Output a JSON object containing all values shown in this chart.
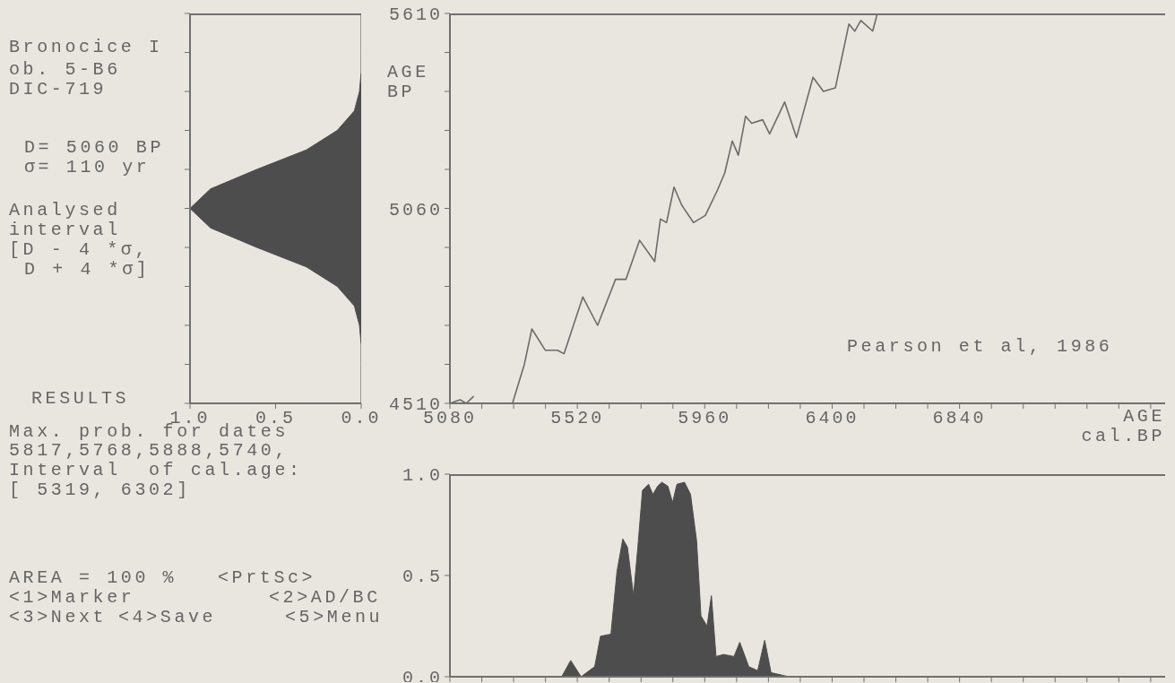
{
  "chart_data": [
    {
      "type": "other",
      "annotations": [
        "Bronocice I",
        "ob. 5-B6",
        "DIC-719",
        "D= 5060 BP",
        "σ= 110 yr",
        "Analysed",
        "interval",
        "[D - 4 *σ,",
        "D + 4 *σ]",
        "RESULTS",
        "Max. prob. for dates",
        "5817,5768,5888,5740,",
        "Interval  of cal.age:",
        "[ 5319, 6302]",
        "AREA = 100 %",
        "<PrtSc>",
        "<1>Marker",
        "<2>AD/BC",
        "<3>Next",
        "<4>Save",
        "<5>Menu"
      ]
    },
    {
      "type": "area",
      "orientation": "horizontal",
      "color": "#4d4d4d",
      "tick_labels": "x",
      "x": [
        4510,
        4565,
        4620,
        4675,
        4730,
        4785,
        4840,
        4895,
        4950,
        5005,
        5060,
        5115,
        5170,
        5225,
        5280,
        5335,
        5390,
        5445,
        5500,
        5555,
        5610
      ],
      "values": [
        0,
        0,
        0,
        0,
        0.01,
        0.04,
        0.14,
        0.32,
        0.61,
        0.88,
        1,
        0.88,
        0.61,
        0.32,
        0.14,
        0.04,
        0.01,
        0,
        0,
        0,
        0
      ],
      "xlim": [
        1.0,
        0.0
      ],
      "xticks": [
        {
          "value": 1,
          "label": "1.0"
        },
        {
          "value": 0.5,
          "label": "0.5"
        },
        {
          "value": 0,
          "label": "0.0"
        }
      ],
      "ylim": [
        4510,
        5610
      ],
      "yticks": [
        {
          "value": 4510,
          "label": null
        },
        {
          "value": 4620,
          "label": null
        },
        {
          "value": 4730,
          "label": null
        },
        {
          "value": 4840,
          "label": null
        },
        {
          "value": 4950,
          "label": null
        },
        {
          "value": 5060,
          "label": null
        },
        {
          "value": 5170,
          "label": null
        },
        {
          "value": 5280,
          "label": null
        },
        {
          "value": 5390,
          "label": null
        },
        {
          "value": 5500,
          "label": null
        },
        {
          "value": 5610,
          "label": null
        }
      ]
    },
    {
      "type": "line",
      "color": "#6b6b6b",
      "xlabel": "AGE cal.BP",
      "ylabel": "AGE BP",
      "annotations": [
        "Pearson et al, 1986"
      ],
      "x": [
        5080,
        5115,
        5136,
        5162,
        5230,
        5296,
        5337,
        5363,
        5409,
        5451,
        5474,
        5539,
        5590,
        5652,
        5688,
        5735,
        5787,
        5807,
        5828,
        5854,
        5880,
        5921,
        5962,
        6003,
        6029,
        6055,
        6076,
        6101,
        6122,
        6160,
        6184,
        6236,
        6277,
        6334,
        6370,
        6411,
        6458,
        6478,
        6499,
        6540,
        6556
      ],
      "values": [
        4510,
        4520,
        4510,
        4530,
        null,
        4510,
        4620,
        4720,
        4660,
        4660,
        4650,
        4810,
        4730,
        4860,
        4860,
        4970,
        4910,
        5030,
        5020,
        5120,
        5070,
        5020,
        5040,
        5110,
        5160,
        5250,
        5210,
        5320,
        5300,
        5310,
        5270,
        5360,
        5260,
        5430,
        5390,
        5400,
        5580,
        5560,
        5590,
        5560,
        5610
      ],
      "xlim": [
        5080,
        7550
      ],
      "xticks": [
        5080,
        {
          "value": 5190,
          "label": null
        },
        {
          "value": 5300,
          "label": null
        },
        {
          "value": 5410,
          "label": null
        },
        5520,
        {
          "value": 5630,
          "label": null
        },
        {
          "value": 5740,
          "label": null
        },
        {
          "value": 5850,
          "label": null
        },
        5960,
        {
          "value": 6070,
          "label": null
        },
        {
          "value": 6180,
          "label": null
        },
        {
          "value": 6290,
          "label": null
        },
        6400,
        {
          "value": 6510,
          "label": null
        },
        {
          "value": 6620,
          "label": null
        },
        {
          "value": 6730,
          "label": null
        },
        6840,
        {
          "value": 6950,
          "label": null
        },
        {
          "value": 7060,
          "label": null
        },
        {
          "value": 7170,
          "label": null
        },
        {
          "value": 7280,
          "label": null
        },
        {
          "value": 7390,
          "label": null
        },
        {
          "value": 7500,
          "label": null
        }
      ],
      "ylim": [
        4510,
        5610
      ],
      "yticks": [
        4510,
        {
          "value": 4620,
          "label": null
        },
        {
          "value": 4730,
          "label": null
        },
        {
          "value": 4840,
          "label": null
        },
        {
          "value": 4950,
          "label": null
        },
        5060,
        {
          "value": 5170,
          "label": null
        },
        {
          "value": 5280,
          "label": null
        },
        {
          "value": 5390,
          "label": null
        },
        {
          "value": 5500,
          "label": null
        },
        5610
      ]
    },
    {
      "type": "area",
      "color": "#4d4d4d",
      "tick_labels": "y",
      "x": [
        5080,
        5466,
        5497,
        5533,
        5580,
        5600,
        5636,
        5657,
        5677,
        5693,
        5714,
        5729,
        5745,
        5766,
        5781,
        5797,
        5812,
        5833,
        5849,
        5864,
        5890,
        5911,
        5932,
        5947,
        5968,
        5983,
        5999,
        6025,
        6061,
        6081,
        6112,
        6143,
        6167,
        6189,
        6251,
        7550
      ],
      "values": [
        0,
        0,
        0.08,
        0,
        0.05,
        0.2,
        0.21,
        0.52,
        0.68,
        0.64,
        0.4,
        0.64,
        0.92,
        0.95,
        0.9,
        0.94,
        0.96,
        0.94,
        0.86,
        0.95,
        0.96,
        0.9,
        0.67,
        0.3,
        0.25,
        0.4,
        0.1,
        0.11,
        0.1,
        0.17,
        0.05,
        0.03,
        0.18,
        0.02,
        0,
        0
      ],
      "xlim": [
        5080,
        7550
      ],
      "xticks": [
        {
          "value": 5080,
          "label": null
        },
        {
          "value": 5190,
          "label": null
        },
        {
          "value": 5300,
          "label": null
        },
        {
          "value": 5410,
          "label": null
        },
        {
          "value": 5520,
          "label": null
        },
        {
          "value": 5630,
          "label": null
        },
        {
          "value": 5740,
          "label": null
        },
        {
          "value": 5850,
          "label": null
        },
        {
          "value": 5960,
          "label": null
        },
        {
          "value": 6070,
          "label": null
        },
        {
          "value": 6180,
          "label": null
        },
        {
          "value": 6290,
          "label": null
        },
        {
          "value": 6400,
          "label": null
        },
        {
          "value": 6510,
          "label": null
        },
        {
          "value": 6620,
          "label": null
        },
        {
          "value": 6730,
          "label": null
        },
        {
          "value": 6840,
          "label": null
        },
        {
          "value": 6950,
          "label": null
        },
        {
          "value": 7060,
          "label": null
        },
        {
          "value": 7170,
          "label": null
        },
        {
          "value": 7280,
          "label": null
        },
        {
          "value": 7390,
          "label": null
        },
        {
          "value": 7500,
          "label": null
        }
      ],
      "ylim": [
        0,
        1
      ],
      "yticks": [
        {
          "value": 0,
          "label": "0.0"
        },
        {
          "value": 0.5,
          "label": "0.5"
        },
        {
          "value": 1,
          "label": "1.0"
        }
      ]
    }
  ]
}
